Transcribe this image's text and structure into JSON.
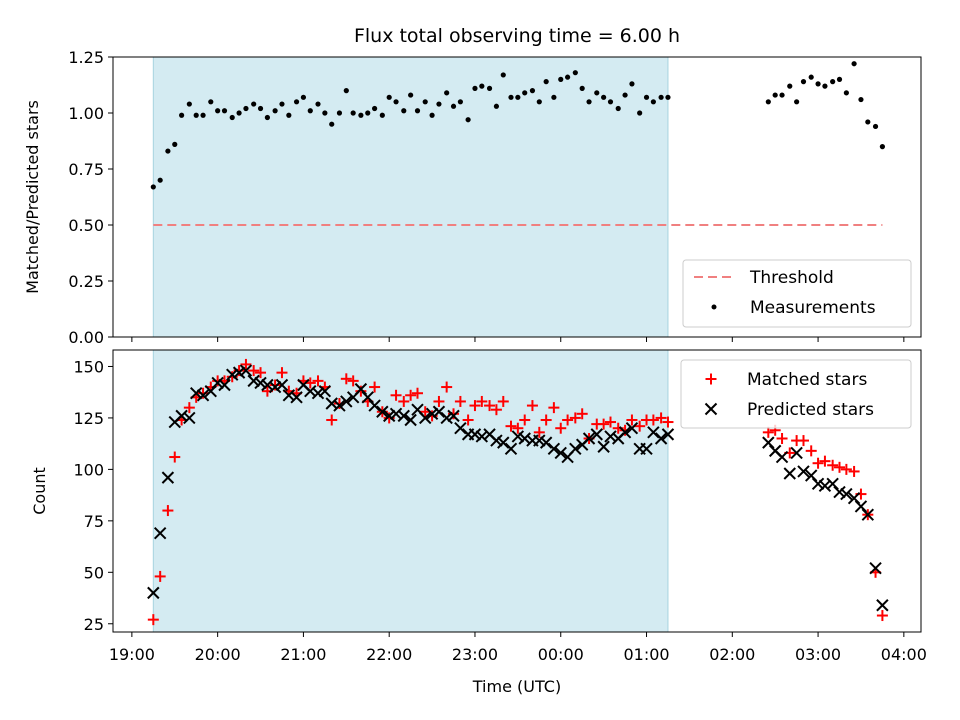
{
  "chart_data": [
    {
      "type": "scatter",
      "title": "Flux total observing time = 6.00 h",
      "xlabel": "",
      "ylabel": "Matched/Predicted stars",
      "xlim_hours": [
        18.78,
        28.2
      ],
      "ylim": [
        0,
        1.25
      ],
      "yticks": [
        0.0,
        0.25,
        0.5,
        0.75,
        1.0,
        1.25
      ],
      "ytick_labels": [
        "0.00",
        "0.25",
        "0.50",
        "0.75",
        "1.00",
        "1.25"
      ],
      "shaded_span_hours": [
        19.25,
        25.25
      ],
      "shaded_color": "#d4ebf2",
      "threshold": {
        "name": "Threshold",
        "value": 0.5,
        "x_range_hours": [
          19.25,
          27.75
        ],
        "color": "#f08080"
      },
      "legend": {
        "placement": "lower-right",
        "entries": [
          "Threshold",
          "Measurements"
        ]
      },
      "series": [
        {
          "name": "Measurements",
          "marker": "dot",
          "color": "#000000",
          "x_hours": [
            19.25,
            19.33,
            19.42,
            19.5,
            19.58,
            19.67,
            19.75,
            19.83,
            19.92,
            20.0,
            20.08,
            20.17,
            20.25,
            20.33,
            20.42,
            20.5,
            20.58,
            20.67,
            20.75,
            20.83,
            20.92,
            21.0,
            21.08,
            21.17,
            21.25,
            21.33,
            21.42,
            21.5,
            21.58,
            21.67,
            21.75,
            21.83,
            21.92,
            22.0,
            22.08,
            22.17,
            22.25,
            22.33,
            22.42,
            22.5,
            22.58,
            22.67,
            22.75,
            22.83,
            22.92,
            23.0,
            23.08,
            23.17,
            23.25,
            23.33,
            23.42,
            23.5,
            23.58,
            23.67,
            23.75,
            23.83,
            23.92,
            24.0,
            24.08,
            24.17,
            24.25,
            24.33,
            24.42,
            24.5,
            24.58,
            24.67,
            24.75,
            24.83,
            24.92,
            25.0,
            25.08,
            25.17,
            25.25,
            26.42,
            26.5,
            26.58,
            26.67,
            26.75,
            26.83,
            26.92,
            27.0,
            27.08,
            27.17,
            27.25,
            27.33,
            27.42,
            27.5,
            27.58,
            27.67,
            27.75
          ],
          "y": [
            0.67,
            0.7,
            0.83,
            0.86,
            0.99,
            1.04,
            0.99,
            0.99,
            1.05,
            1.01,
            1.01,
            0.98,
            1.0,
            1.02,
            1.04,
            1.02,
            0.98,
            1.01,
            1.04,
            0.99,
            1.05,
            1.07,
            1.01,
            1.04,
            1.0,
            0.95,
            1.0,
            1.1,
            1.0,
            0.99,
            1.0,
            1.02,
            0.99,
            1.07,
            1.05,
            1.01,
            1.08,
            1.01,
            1.05,
            0.99,
            1.04,
            1.09,
            1.03,
            1.05,
            0.97,
            1.11,
            1.12,
            1.11,
            1.03,
            1.17,
            1.07,
            1.07,
            1.09,
            1.1,
            1.05,
            1.14,
            1.07,
            1.15,
            1.16,
            1.18,
            1.11,
            1.05,
            1.09,
            1.07,
            1.05,
            1.02,
            1.08,
            1.13,
            1.0,
            1.07,
            1.05,
            1.07,
            1.07,
            1.05,
            1.08,
            1.08,
            1.12,
            1.05,
            1.14,
            1.16,
            1.13,
            1.12,
            1.14,
            1.15,
            1.09,
            1.22,
            1.06,
            0.96,
            0.94,
            0.85
          ]
        }
      ]
    },
    {
      "type": "scatter",
      "title": "",
      "xlabel": "Time (UTC)",
      "ylabel": "Count",
      "xlim_hours": [
        18.78,
        28.2
      ],
      "ylim": [
        21,
        158
      ],
      "yticks": [
        25,
        50,
        75,
        100,
        125,
        150
      ],
      "ytick_labels": [
        "25",
        "50",
        "75",
        "100",
        "125",
        "150"
      ],
      "xticks_hours": [
        19,
        20,
        21,
        22,
        23,
        24,
        25,
        26,
        27,
        28
      ],
      "xtick_labels": [
        "19:00",
        "20:00",
        "21:00",
        "22:00",
        "23:00",
        "00:00",
        "01:00",
        "02:00",
        "03:00",
        "04:00"
      ],
      "shaded_span_hours": [
        19.25,
        25.25
      ],
      "shaded_color": "#d4ebf2",
      "legend": {
        "placement": "top-right",
        "entries": [
          "Matched stars",
          "Predicted stars"
        ]
      },
      "series": [
        {
          "name": "Matched stars",
          "marker": "plus",
          "color": "#ff0000",
          "x_hours": [
            19.25,
            19.33,
            19.42,
            19.5,
            19.58,
            19.67,
            19.75,
            19.83,
            19.92,
            20.0,
            20.08,
            20.17,
            20.25,
            20.33,
            20.42,
            20.5,
            20.58,
            20.67,
            20.75,
            20.83,
            20.92,
            21.0,
            21.08,
            21.17,
            21.25,
            21.33,
            21.42,
            21.5,
            21.58,
            21.67,
            21.75,
            21.83,
            21.92,
            22.0,
            22.08,
            22.17,
            22.25,
            22.33,
            22.42,
            22.5,
            22.58,
            22.67,
            22.75,
            22.83,
            22.92,
            23.0,
            23.08,
            23.17,
            23.25,
            23.33,
            23.42,
            23.5,
            23.58,
            23.67,
            23.75,
            23.83,
            23.92,
            24.0,
            24.08,
            24.17,
            24.25,
            24.33,
            24.42,
            24.5,
            24.58,
            24.67,
            24.75,
            24.83,
            24.92,
            25.0,
            25.08,
            25.17,
            25.25,
            26.42,
            26.5,
            26.58,
            26.67,
            26.75,
            26.83,
            26.92,
            27.0,
            27.08,
            27.17,
            27.25,
            27.33,
            27.42,
            27.5,
            27.58,
            27.67,
            27.75
          ],
          "y": [
            27,
            48,
            80,
            106,
            124,
            130,
            135,
            137,
            140,
            143,
            143,
            145,
            148,
            151,
            148,
            147,
            138,
            141,
            147,
            138,
            137,
            143,
            142,
            143,
            140,
            124,
            132,
            144,
            143,
            138,
            133,
            140,
            128,
            125,
            136,
            133,
            136,
            137,
            128,
            126,
            133,
            140,
            127,
            133,
            124,
            131,
            133,
            131,
            129,
            133,
            121,
            120,
            124,
            131,
            118,
            124,
            130,
            120,
            124,
            125,
            127,
            115,
            122,
            122,
            123,
            120,
            119,
            124,
            121,
            124,
            124,
            125,
            123,
            118,
            119,
            115,
            108,
            114,
            114,
            109,
            103,
            104,
            102,
            101,
            100,
            99,
            88,
            78,
            50,
            29
          ]
        },
        {
          "name": "Predicted stars",
          "marker": "x",
          "color": "#000000",
          "x_hours": [
            19.25,
            19.33,
            19.42,
            19.5,
            19.58,
            19.67,
            19.75,
            19.83,
            19.92,
            20.0,
            20.08,
            20.17,
            20.25,
            20.33,
            20.42,
            20.5,
            20.58,
            20.67,
            20.75,
            20.83,
            20.92,
            21.0,
            21.08,
            21.17,
            21.25,
            21.33,
            21.42,
            21.5,
            21.58,
            21.67,
            21.75,
            21.83,
            21.92,
            22.0,
            22.08,
            22.17,
            22.25,
            22.33,
            22.42,
            22.5,
            22.58,
            22.67,
            22.75,
            22.83,
            22.92,
            23.0,
            23.08,
            23.17,
            23.25,
            23.33,
            23.42,
            23.5,
            23.58,
            23.67,
            23.75,
            23.83,
            23.92,
            24.0,
            24.08,
            24.17,
            24.25,
            24.33,
            24.42,
            24.5,
            24.58,
            24.67,
            24.75,
            24.83,
            24.92,
            25.0,
            25.08,
            25.17,
            25.25,
            26.42,
            26.5,
            26.58,
            26.67,
            26.75,
            26.83,
            26.92,
            27.0,
            27.08,
            27.17,
            27.25,
            27.33,
            27.42,
            27.5,
            27.58,
            27.67,
            27.75
          ],
          "y": [
            40,
            69,
            96,
            123,
            126,
            125,
            137,
            136,
            138,
            142,
            141,
            146,
            147,
            148,
            143,
            142,
            141,
            140,
            141,
            136,
            135,
            141,
            138,
            137,
            138,
            132,
            131,
            133,
            135,
            139,
            135,
            131,
            128,
            126,
            127,
            126,
            124,
            129,
            125,
            127,
            128,
            125,
            126,
            120,
            117,
            117,
            116,
            117,
            114,
            113,
            110,
            116,
            115,
            114,
            114,
            113,
            110,
            108,
            106,
            110,
            112,
            115,
            117,
            111,
            116,
            115,
            118,
            120,
            110,
            110,
            118,
            115,
            117,
            113,
            109,
            106,
            98,
            108,
            99,
            97,
            93,
            92,
            93,
            89,
            88,
            86,
            82,
            78,
            52,
            34
          ]
        }
      ]
    }
  ]
}
